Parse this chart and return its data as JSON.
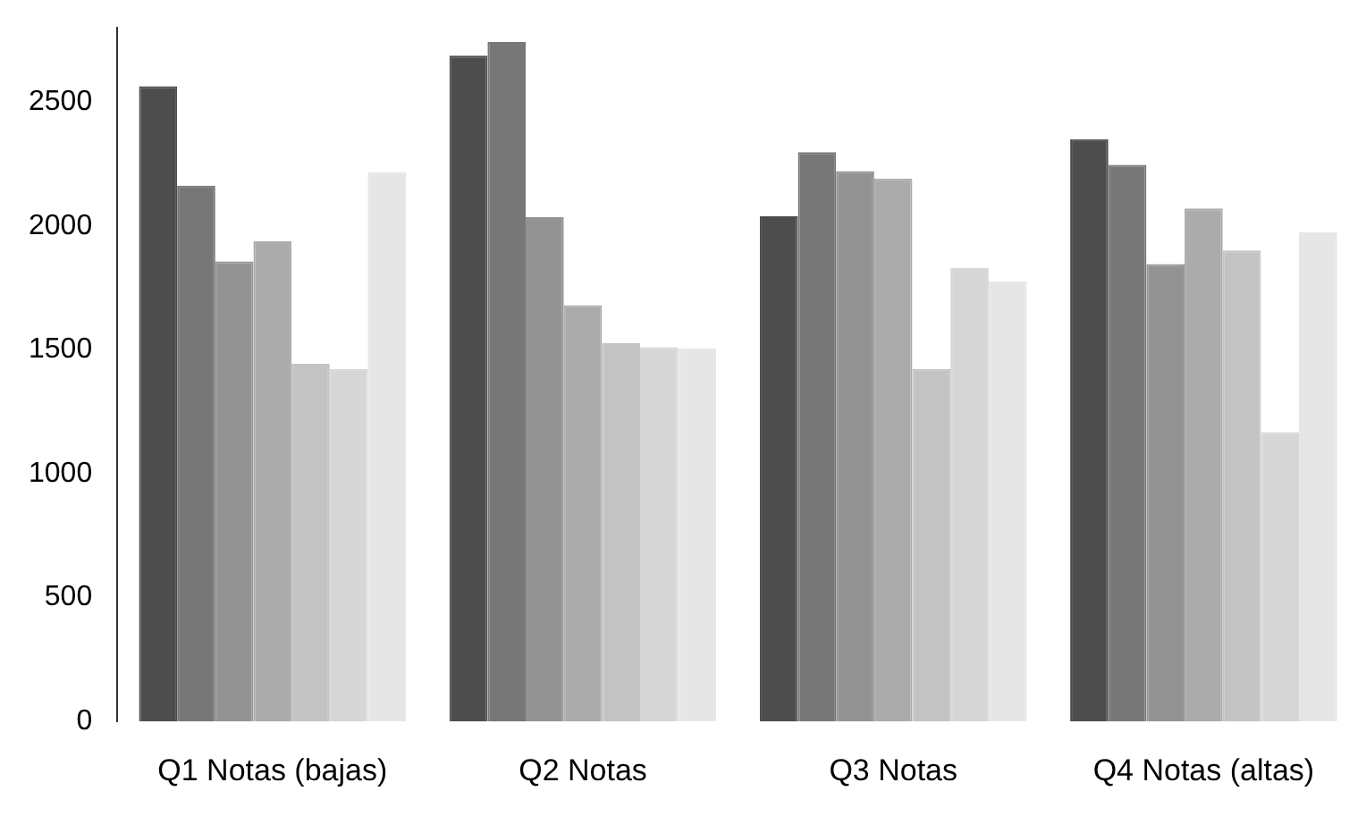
{
  "chart_data": {
    "type": "bar",
    "categories": [
      "Q1 Notas (bajas)",
      "Q2 Notas",
      "Q3 Notas",
      "Q4 Notas (altas)"
    ],
    "series": [
      {
        "color": "#4d4d4d",
        "values": [
          2564,
          2688,
          2039,
          2351
        ]
      },
      {
        "color": "#777777",
        "values": [
          2163,
          2743,
          2298,
          2247
        ]
      },
      {
        "color": "#939393",
        "values": [
          1857,
          2036,
          2222,
          1846
        ]
      },
      {
        "color": "#ababab",
        "values": [
          1938,
          1680,
          2192,
          2071
        ]
      },
      {
        "color": "#c3c3c3",
        "values": [
          1444,
          1527,
          1423,
          1901
        ]
      },
      {
        "color": "#d6d6d6",
        "values": [
          1423,
          1511,
          1830,
          1168
        ]
      },
      {
        "color": "#e6e6e6",
        "values": [
          2218,
          1506,
          1777,
          1974
        ]
      }
    ],
    "ylim": [
      0,
      2800
    ],
    "yticks": [
      0,
      500,
      1000,
      1500,
      2000,
      2500
    ],
    "grid": false,
    "legend": false
  }
}
